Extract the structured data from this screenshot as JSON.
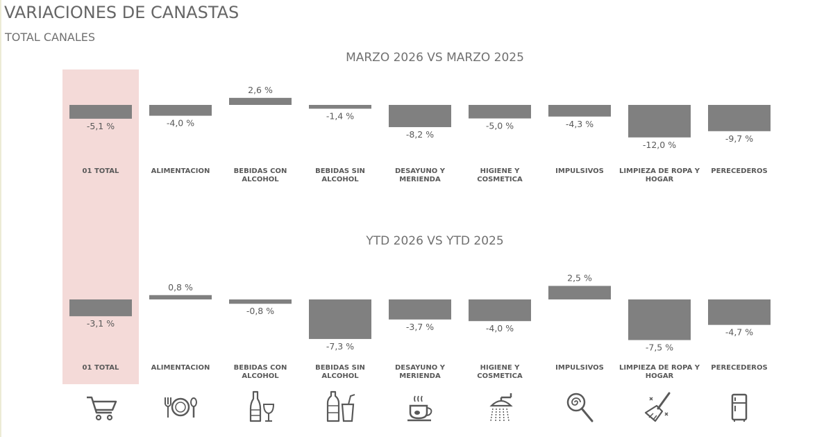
{
  "header": {
    "title": "VARIACIONES DE CANASTAS",
    "subtitle": "TOTAL CANALES"
  },
  "chart_data": [
    {
      "type": "bar",
      "title": "MARZO 2026 VS MARZO 2025",
      "categories": [
        "01 TOTAL",
        "ALIMENTACION",
        "BEBIDAS CON ALCOHOL",
        "BEBIDAS SIN ALCOHOL",
        "DESAYUNO Y MERIENDA",
        "HIGIENE Y COSMETICA",
        "IMPULSIVOS",
        "LIMPIEZA DE ROPA Y HOGAR",
        "PERECEDEROS"
      ],
      "category_lines": [
        [
          "01 TOTAL"
        ],
        [
          "ALIMENTACION"
        ],
        [
          "BEBIDAS CON",
          "ALCOHOL"
        ],
        [
          "BEBIDAS SIN",
          "ALCOHOL"
        ],
        [
          "DESAYUNO Y",
          "MERIENDA"
        ],
        [
          "HIGIENE Y",
          "COSMETICA"
        ],
        [
          "IMPULSIVOS"
        ],
        [
          "LIMPIEZA DE ROPA Y",
          "HOGAR"
        ],
        [
          "PERECEDEROS"
        ]
      ],
      "values": [
        -5.1,
        -4.0,
        2.6,
        -1.4,
        -8.2,
        -5.0,
        -4.3,
        -12.0,
        -9.7
      ],
      "labels": [
        "-5,1 %",
        "-4,0 %",
        "2,6 %",
        "-1,4 %",
        "-8,2 %",
        "-5,0 %",
        "-4,3 %",
        "-12,0 %",
        "-9,7 %"
      ],
      "highlight_category": "01 TOTAL",
      "bar_color": "#808080",
      "highlight_color": "#f4dad8"
    },
    {
      "type": "bar",
      "title": "YTD 2026 VS YTD 2025",
      "categories": [
        "01 TOTAL",
        "ALIMENTACION",
        "BEBIDAS CON ALCOHOL",
        "BEBIDAS SIN ALCOHOL",
        "DESAYUNO Y MERIENDA",
        "HIGIENE Y COSMETICA",
        "IMPULSIVOS",
        "LIMPIEZA DE ROPA Y HOGAR",
        "PERECEDEROS"
      ],
      "category_lines": [
        [
          "01 TOTAL"
        ],
        [
          "ALIMENTACION"
        ],
        [
          "BEBIDAS CON",
          "ALCOHOL"
        ],
        [
          "BEBIDAS SIN",
          "ALCOHOL"
        ],
        [
          "DESAYUNO Y",
          "MERIENDA"
        ],
        [
          "HIGIENE Y",
          "COSMETICA"
        ],
        [
          "IMPULSIVOS"
        ],
        [
          "LIMPIEZA DE ROPA Y",
          "HOGAR"
        ],
        [
          "PERECEDEROS"
        ]
      ],
      "values": [
        -3.1,
        0.8,
        -0.8,
        -7.3,
        -3.7,
        -4.0,
        2.5,
        -7.5,
        -4.7
      ],
      "labels": [
        "-3,1 %",
        "0,8 %",
        "-0,8 %",
        "-7,3 %",
        "-3,7 %",
        "-4,0 %",
        "2,5 %",
        "-7,5 %",
        "-4,7 %"
      ],
      "highlight_category": "01 TOTAL",
      "bar_color": "#808080",
      "highlight_color": "#f4dad8"
    }
  ],
  "icons": [
    "cart-icon",
    "plate-cutlery-icon",
    "wine-bottle-glass-icon",
    "soda-bottle-cup-icon",
    "coffee-cup-icon",
    "shower-icon",
    "lollipop-icon",
    "broom-icon",
    "fridge-icon"
  ]
}
